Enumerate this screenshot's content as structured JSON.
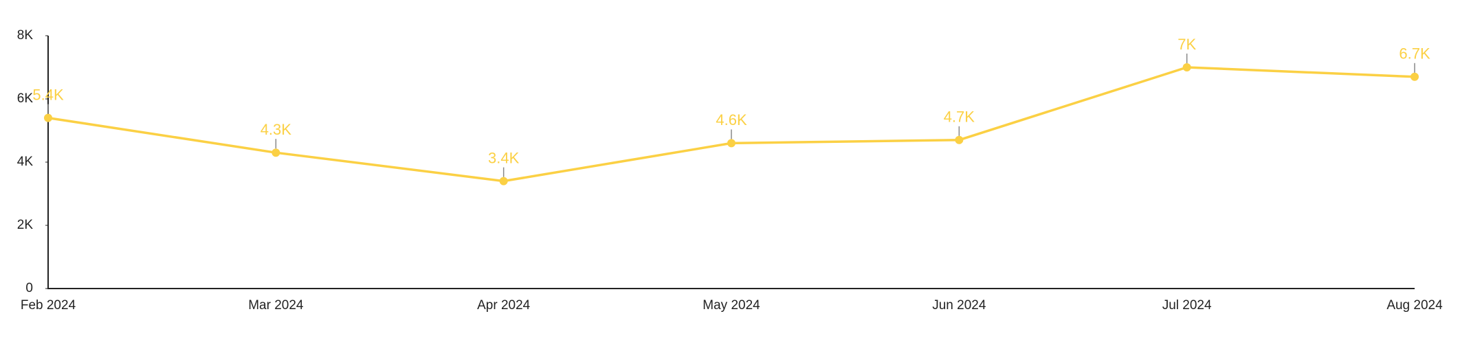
{
  "chart_data": {
    "type": "line",
    "categories": [
      "Feb 2024",
      "Mar 2024",
      "Apr 2024",
      "May 2024",
      "Jun 2024",
      "Jul 2024",
      "Aug 2024"
    ],
    "series": [
      {
        "color": "#fbd044",
        "values": [
          5400,
          4300,
          3400,
          4600,
          4700,
          7000,
          6700
        ],
        "value_labels": [
          "5.4K",
          "4.3K",
          "3.4K",
          "4.6K",
          "4.7K",
          "7K",
          "6.7K"
        ]
      }
    ],
    "ylim": [
      0,
      8000
    ],
    "yticks": [
      0,
      {
        "value": 2000,
        "label": "2K"
      },
      {
        "value": 4000,
        "label": "4K"
      },
      {
        "value": 6000,
        "label": "6K"
      },
      {
        "value": 8000,
        "label": "8K"
      }
    ],
    "grid": false
  }
}
